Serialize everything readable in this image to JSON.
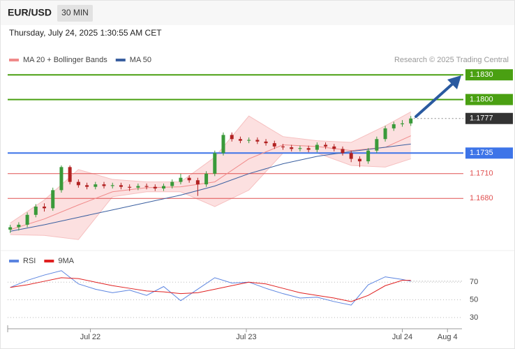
{
  "header": {
    "symbol": "EUR/USD",
    "interval": "30 MIN",
    "timestamp": "Thursday, July 24, 2025 1:30:55 AM CET"
  },
  "chart_data": [
    {
      "type": "candlestick",
      "credit": "Research © 2025 Trading Central",
      "up_color": "#3a9a3a",
      "down_color": "#b22222",
      "open": [
        1.1642,
        1.1645,
        1.1648,
        1.166,
        1.167,
        1.1668,
        1.169,
        1.1718,
        1.17,
        1.1696,
        1.1694,
        1.1697,
        1.1695,
        1.1696,
        1.1694,
        1.1693,
        1.1695,
        1.1694,
        1.1692,
        1.1695,
        1.17,
        1.1705,
        1.1702,
        1.1697,
        1.171,
        1.1735,
        1.1757,
        1.1752,
        1.175,
        1.1751,
        1.1749,
        1.1747,
        1.1743,
        1.1742,
        1.174,
        1.1741,
        1.1739,
        1.1745,
        1.1743,
        1.174,
        1.1735,
        1.1728,
        1.1725,
        1.1738,
        1.1752,
        1.1765,
        1.177,
        1.1771
      ],
      "high": [
        1.1648,
        1.1651,
        1.1663,
        1.1673,
        1.1674,
        1.1693,
        1.172,
        1.172,
        1.1703,
        1.1699,
        1.17,
        1.17,
        1.1699,
        1.1699,
        1.1697,
        1.1698,
        1.1698,
        1.1697,
        1.1698,
        1.1703,
        1.171,
        1.1708,
        1.1705,
        1.1713,
        1.1738,
        1.176,
        1.176,
        1.1755,
        1.1754,
        1.1754,
        1.1752,
        1.175,
        1.1746,
        1.1745,
        1.1744,
        1.1744,
        1.1748,
        1.1748,
        1.1746,
        1.1743,
        1.1738,
        1.1731,
        1.1741,
        1.1755,
        1.1768,
        1.1773,
        1.1775,
        1.178
      ],
      "low": [
        1.1638,
        1.1641,
        1.1645,
        1.1657,
        1.1664,
        1.1665,
        1.1687,
        1.1697,
        1.1693,
        1.1691,
        1.1691,
        1.1692,
        1.1692,
        1.1691,
        1.1689,
        1.169,
        1.1691,
        1.1689,
        1.1689,
        1.1692,
        1.1697,
        1.1699,
        1.1683,
        1.1694,
        1.1707,
        1.1732,
        1.1749,
        1.1747,
        1.1747,
        1.1746,
        1.1744,
        1.174,
        1.1739,
        1.1737,
        1.1737,
        1.1736,
        1.1736,
        1.174,
        1.1737,
        1.1732,
        1.1724,
        1.1718,
        1.1722,
        1.1735,
        1.1749,
        1.1762,
        1.1767,
        1.1768
      ],
      "close": [
        1.1645,
        1.1648,
        1.166,
        1.167,
        1.1668,
        1.169,
        1.1718,
        1.17,
        1.1696,
        1.1694,
        1.1697,
        1.1695,
        1.1696,
        1.1694,
        1.1693,
        1.1695,
        1.1694,
        1.1692,
        1.1695,
        1.17,
        1.1705,
        1.1702,
        1.1697,
        1.171,
        1.1735,
        1.1757,
        1.1752,
        1.175,
        1.1751,
        1.1749,
        1.1747,
        1.1743,
        1.1742,
        1.174,
        1.1741,
        1.1739,
        1.1745,
        1.1743,
        1.174,
        1.1735,
        1.1728,
        1.1725,
        1.1738,
        1.1752,
        1.1765,
        1.177,
        1.1771,
        1.1777
      ],
      "series": [
        {
          "name": "MA 20 + Bollinger Bands",
          "color": "#f08a8a",
          "x": [
            0,
            4,
            8,
            12,
            16,
            20,
            24,
            28,
            32,
            36,
            40,
            44,
            47
          ],
          "values": [
            1.1642,
            1.1655,
            1.1672,
            1.1688,
            1.1693,
            1.1694,
            1.17,
            1.1728,
            1.1745,
            1.1743,
            1.1738,
            1.1742,
            1.1756
          ],
          "upper": [
            1.165,
            1.1678,
            1.1715,
            1.1703,
            1.17,
            1.17,
            1.173,
            1.178,
            1.1755,
            1.175,
            1.1748,
            1.1768,
            1.1785
          ],
          "lower": [
            1.1636,
            1.1635,
            1.163,
            1.1682,
            1.1688,
            1.1688,
            1.167,
            1.169,
            1.1735,
            1.1735,
            1.172,
            1.1718,
            1.1728
          ]
        },
        {
          "name": "MA 50",
          "color": "#3a5fa0",
          "x": [
            0,
            4,
            8,
            12,
            16,
            20,
            24,
            28,
            32,
            36,
            40,
            44,
            47
          ],
          "values": [
            1.164,
            1.1648,
            1.1657,
            1.1666,
            1.1675,
            1.1684,
            1.1695,
            1.171,
            1.1722,
            1.1731,
            1.1737,
            1.1742,
            1.1746
          ]
        }
      ],
      "levels": [
        {
          "value": 1.183,
          "label": "1.1830",
          "color": "#4aa012",
          "box": true
        },
        {
          "value": 1.18,
          "label": "1.1800",
          "color": "#4aa012",
          "box": true
        },
        {
          "value": 1.1777,
          "color": "#333333",
          "box": true,
          "dotted": true
        },
        {
          "value": 1.1735,
          "color": "#3d74e8",
          "box": true
        },
        {
          "value": 1.171,
          "label": "1.1710",
          "color": "#e05050",
          "box": false
        },
        {
          "value": 1.168,
          "label": "1.1680",
          "color": "#e05050",
          "box": false
        }
      ],
      "xlim": [
        -0.3,
        53
      ],
      "ylim": [
        1.162,
        1.187
      ]
    },
    {
      "type": "line",
      "x": [
        0,
        2,
        4,
        6,
        8,
        10,
        12,
        14,
        16,
        18,
        20,
        22,
        24,
        26,
        28,
        30,
        32,
        34,
        36,
        38,
        40,
        42,
        44,
        46,
        47
      ],
      "series": [
        {
          "name": "RSI",
          "color": "#5b84e0",
          "values": [
            64,
            72,
            78,
            83,
            68,
            62,
            58,
            61,
            55,
            65,
            49,
            62,
            75,
            69,
            70,
            63,
            57,
            52,
            53,
            48,
            44,
            67,
            76,
            73,
            71
          ]
        },
        {
          "name": "9MA",
          "color": "#e02020",
          "values": [
            64,
            67,
            71,
            75,
            74,
            70,
            66,
            63,
            60,
            59,
            57,
            58,
            62,
            66,
            70,
            68,
            63,
            58,
            55,
            52,
            48,
            55,
            66,
            72,
            72
          ]
        }
      ],
      "xlim": [
        -0.3,
        53
      ],
      "ylim": [
        22,
        97
      ],
      "yticks": [
        70,
        50,
        30
      ],
      "xticks": [
        {
          "value": 9.4,
          "label": "Jul 22"
        },
        {
          "value": 27.7,
          "label": "Jul 23"
        },
        {
          "value": 46,
          "label": "Jul 24"
        },
        {
          "value": 51.3,
          "label": "Aug 4"
        }
      ]
    }
  ]
}
